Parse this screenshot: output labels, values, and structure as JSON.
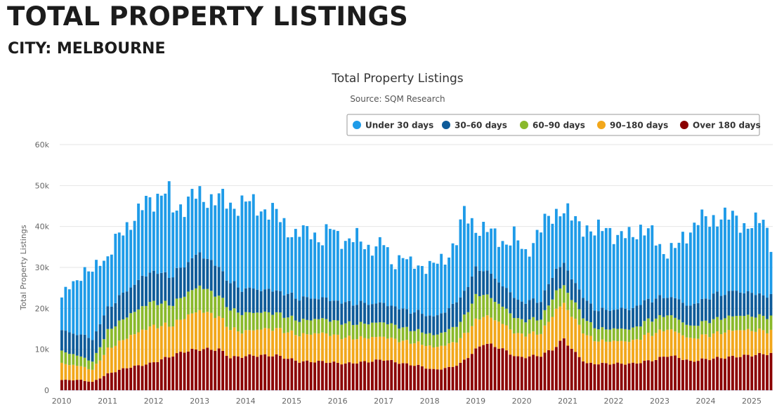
{
  "page": {
    "title": "TOTAL PROPERTY LISTINGS",
    "subtitle": "CITY: MELBOURNE"
  },
  "chart_data": {
    "type": "bar",
    "stacked": true,
    "title": "Total Property Listings",
    "subtitle": "Source: SQM Research",
    "ylabel": "Total Property Listings",
    "xlabel": "",
    "ylim": [
      0,
      60000
    ],
    "yticks": [
      0,
      10000,
      20000,
      30000,
      40000,
      50000,
      60000
    ],
    "ytick_labels": [
      "0",
      "10k",
      "20k",
      "30k",
      "40k",
      "50k",
      "60k"
    ],
    "xtick_labels": [
      "2010",
      "2011",
      "2012",
      "2013",
      "2014",
      "2015",
      "2016",
      "2017",
      "2018",
      "2019",
      "2020",
      "2021",
      "2022",
      "2023",
      "2024",
      "2025"
    ],
    "x_start": "2010-01",
    "frequency": "monthly",
    "grid": true,
    "legend_position": "top-right",
    "legend": [
      {
        "name": "Under 30 days",
        "color": "#1e9be8"
      },
      {
        "name": "30–60 days",
        "color": "#0e5b99"
      },
      {
        "name": "60–90 days",
        "color": "#8ab92b"
      },
      {
        "name": "90–180 days",
        "color": "#f2a71b"
      },
      {
        "name": "Over 180 days",
        "color": "#8b0000"
      }
    ],
    "total_anchors": [
      [
        "2010-01",
        22000
      ],
      [
        "2010-03",
        26000
      ],
      [
        "2010-06",
        28000
      ],
      [
        "2010-09",
        29000
      ],
      [
        "2010-11",
        32500
      ],
      [
        "2011-01",
        32000
      ],
      [
        "2011-03",
        36000
      ],
      [
        "2011-05",
        39500
      ],
      [
        "2011-09",
        43000
      ],
      [
        "2011-11",
        46000
      ],
      [
        "2012-01",
        47000
      ],
      [
        "2012-04",
        48500
      ],
      [
        "2012-05",
        47500
      ],
      [
        "2012-06",
        44000
      ],
      [
        "2012-09",
        45500
      ],
      [
        "2012-11",
        47500
      ],
      [
        "2013-02",
        47000
      ],
      [
        "2013-06",
        47000
      ],
      [
        "2013-09",
        45000
      ],
      [
        "2014-01",
        46000
      ],
      [
        "2014-05",
        44500
      ],
      [
        "2014-09",
        43000
      ],
      [
        "2014-12",
        39500
      ],
      [
        "2015-02",
        38000
      ],
      [
        "2015-06",
        39000
      ],
      [
        "2015-09",
        36500
      ],
      [
        "2015-11",
        39500
      ],
      [
        "2016-03",
        36500
      ],
      [
        "2016-06",
        37000
      ],
      [
        "2016-09",
        35000
      ],
      [
        "2016-11",
        35000
      ],
      [
        "2017-01",
        36000
      ],
      [
        "2017-03",
        31000
      ],
      [
        "2017-06",
        33000
      ],
      [
        "2017-08",
        30500
      ],
      [
        "2017-11",
        30500
      ],
      [
        "2018-02",
        30500
      ],
      [
        "2018-05",
        32000
      ],
      [
        "2018-08",
        37000
      ],
      [
        "2018-10",
        43000
      ],
      [
        "2019-01",
        40000
      ],
      [
        "2019-04",
        39000
      ],
      [
        "2019-09",
        36000
      ],
      [
        "2019-11",
        37500
      ],
      [
        "2020-02",
        33500
      ],
      [
        "2020-05",
        38000
      ],
      [
        "2020-08",
        42000
      ],
      [
        "2020-11",
        44500
      ],
      [
        "2021-02",
        42000
      ],
      [
        "2021-05",
        40500
      ],
      [
        "2021-08",
        38000
      ],
      [
        "2021-11",
        40500
      ],
      [
        "2022-02",
        37000
      ],
      [
        "2022-05",
        38000
      ],
      [
        "2022-08",
        39500
      ],
      [
        "2022-11",
        38000
      ],
      [
        "2023-02",
        34000
      ],
      [
        "2023-05",
        34500
      ],
      [
        "2023-08",
        38000
      ],
      [
        "2023-11",
        42000
      ],
      [
        "2024-02",
        41000
      ],
      [
        "2024-05",
        43000
      ],
      [
        "2024-08",
        42000
      ],
      [
        "2024-11",
        40500
      ],
      [
        "2025-02",
        40500
      ],
      [
        "2025-04",
        41500
      ],
      [
        "2025-06",
        36500
      ]
    ],
    "over180_anchors": [
      [
        "2010-01",
        2500
      ],
      [
        "2010-06",
        2500
      ],
      [
        "2010-09",
        2000
      ],
      [
        "2010-11",
        3000
      ],
      [
        "2011-01",
        4000
      ],
      [
        "2011-06",
        5500
      ],
      [
        "2011-12",
        6500
      ],
      [
        "2012-06",
        8500
      ],
      [
        "2012-09",
        9500
      ],
      [
        "2013-01",
        10000
      ],
      [
        "2013-06",
        10000
      ],
      [
        "2013-09",
        8000
      ],
      [
        "2014-03",
        8500
      ],
      [
        "2014-09",
        8500
      ],
      [
        "2015-03",
        7000
      ],
      [
        "2015-09",
        7000
      ],
      [
        "2016-03",
        6500
      ],
      [
        "2016-09",
        7000
      ],
      [
        "2017-01",
        7500
      ],
      [
        "2017-06",
        6500
      ],
      [
        "2017-10",
        6000
      ],
      [
        "2018-02",
        5000
      ],
      [
        "2018-06",
        5500
      ],
      [
        "2018-09",
        6500
      ],
      [
        "2018-12",
        9000
      ],
      [
        "2019-03",
        11500
      ],
      [
        "2019-07",
        10500
      ],
      [
        "2019-12",
        8000
      ],
      [
        "2020-06",
        8500
      ],
      [
        "2020-09",
        10000
      ],
      [
        "2020-12",
        12500
      ],
      [
        "2021-03",
        9000
      ],
      [
        "2021-06",
        6500
      ],
      [
        "2021-12",
        6500
      ],
      [
        "2022-06",
        6500
      ],
      [
        "2022-09",
        7000
      ],
      [
        "2022-12",
        7500
      ],
      [
        "2023-03",
        8500
      ],
      [
        "2023-06",
        8000
      ],
      [
        "2023-09",
        7000
      ],
      [
        "2023-12",
        7500
      ],
      [
        "2024-06",
        8000
      ],
      [
        "2024-12",
        8500
      ],
      [
        "2025-06",
        9000
      ]
    ],
    "band_anchors_90_180": [
      [
        "2010-01",
        4000
      ],
      [
        "2010-09",
        3000
      ],
      [
        "2011-01",
        6000
      ],
      [
        "2011-12",
        9000
      ],
      [
        "2012-06",
        7500
      ],
      [
        "2013-01",
        9500
      ],
      [
        "2013-06",
        8000
      ],
      [
        "2013-12",
        6000
      ],
      [
        "2014-06",
        6500
      ],
      [
        "2015-03",
        6500
      ],
      [
        "2015-09",
        7000
      ],
      [
        "2016-06",
        6000
      ],
      [
        "2017-03",
        5500
      ],
      [
        "2017-09",
        5500
      ],
      [
        "2018-03",
        5500
      ],
      [
        "2018-09",
        6000
      ],
      [
        "2019-01",
        7000
      ],
      [
        "2019-06",
        6500
      ],
      [
        "2020-01",
        5500
      ],
      [
        "2020-06",
        5500
      ],
      [
        "2020-10",
        9000
      ],
      [
        "2021-03",
        8000
      ],
      [
        "2021-09",
        5500
      ],
      [
        "2022-06",
        5500
      ],
      [
        "2022-10",
        6500
      ],
      [
        "2023-03",
        6500
      ],
      [
        "2023-09",
        5500
      ],
      [
        "2024-03",
        6000
      ],
      [
        "2024-09",
        6500
      ],
      [
        "2025-06",
        5500
      ]
    ],
    "band_anchors_60_90": [
      [
        "2010-01",
        3000
      ],
      [
        "2010-09",
        2000
      ],
      [
        "2011-01",
        4500
      ],
      [
        "2011-12",
        6000
      ],
      [
        "2012-06",
        5000
      ],
      [
        "2013-01",
        6000
      ],
      [
        "2013-06",
        5000
      ],
      [
        "2013-12",
        4500
      ],
      [
        "2014-06",
        4000
      ],
      [
        "2015-03",
        3500
      ],
      [
        "2015-09",
        3500
      ],
      [
        "2016-06",
        3500
      ],
      [
        "2017-03",
        3500
      ],
      [
        "2017-09",
        3000
      ],
      [
        "2018-03",
        3000
      ],
      [
        "2018-09",
        4000
      ],
      [
        "2019-01",
        6000
      ],
      [
        "2019-06",
        4500
      ],
      [
        "2020-01",
        3500
      ],
      [
        "2020-06",
        3500
      ],
      [
        "2020-10",
        4500
      ],
      [
        "2021-03",
        4000
      ],
      [
        "2021-09",
        3000
      ],
      [
        "2022-06",
        3000
      ],
      [
        "2022-10",
        3500
      ],
      [
        "2023-03",
        3500
      ],
      [
        "2023-09",
        3000
      ],
      [
        "2024-03",
        3500
      ],
      [
        "2024-09",
        3500
      ],
      [
        "2025-06",
        3500
      ]
    ],
    "band_anchors_30_60": [
      [
        "2010-01",
        5000
      ],
      [
        "2010-09",
        5500
      ],
      [
        "2011-01",
        5500
      ],
      [
        "2011-12",
        7500
      ],
      [
        "2012-06",
        7000
      ],
      [
        "2013-01",
        8000
      ],
      [
        "2013-06",
        7000
      ],
      [
        "2013-12",
        6000
      ],
      [
        "2014-06",
        5500
      ],
      [
        "2015-03",
        5500
      ],
      [
        "2015-09",
        5000
      ],
      [
        "2016-06",
        5000
      ],
      [
        "2017-03",
        4500
      ],
      [
        "2017-09",
        4500
      ],
      [
        "2018-03",
        4500
      ],
      [
        "2018-09",
        6000
      ],
      [
        "2019-01",
        6500
      ],
      [
        "2019-06",
        5500
      ],
      [
        "2020-01",
        4500
      ],
      [
        "2020-06",
        4500
      ],
      [
        "2020-10",
        5500
      ],
      [
        "2021-03",
        5000
      ],
      [
        "2021-09",
        4500
      ],
      [
        "2022-06",
        5000
      ],
      [
        "2022-10",
        5000
      ],
      [
        "2023-03",
        4500
      ],
      [
        "2023-09",
        5000
      ],
      [
        "2024-03",
        6000
      ],
      [
        "2024-09",
        6000
      ],
      [
        "2025-06",
        5000
      ]
    ]
  }
}
